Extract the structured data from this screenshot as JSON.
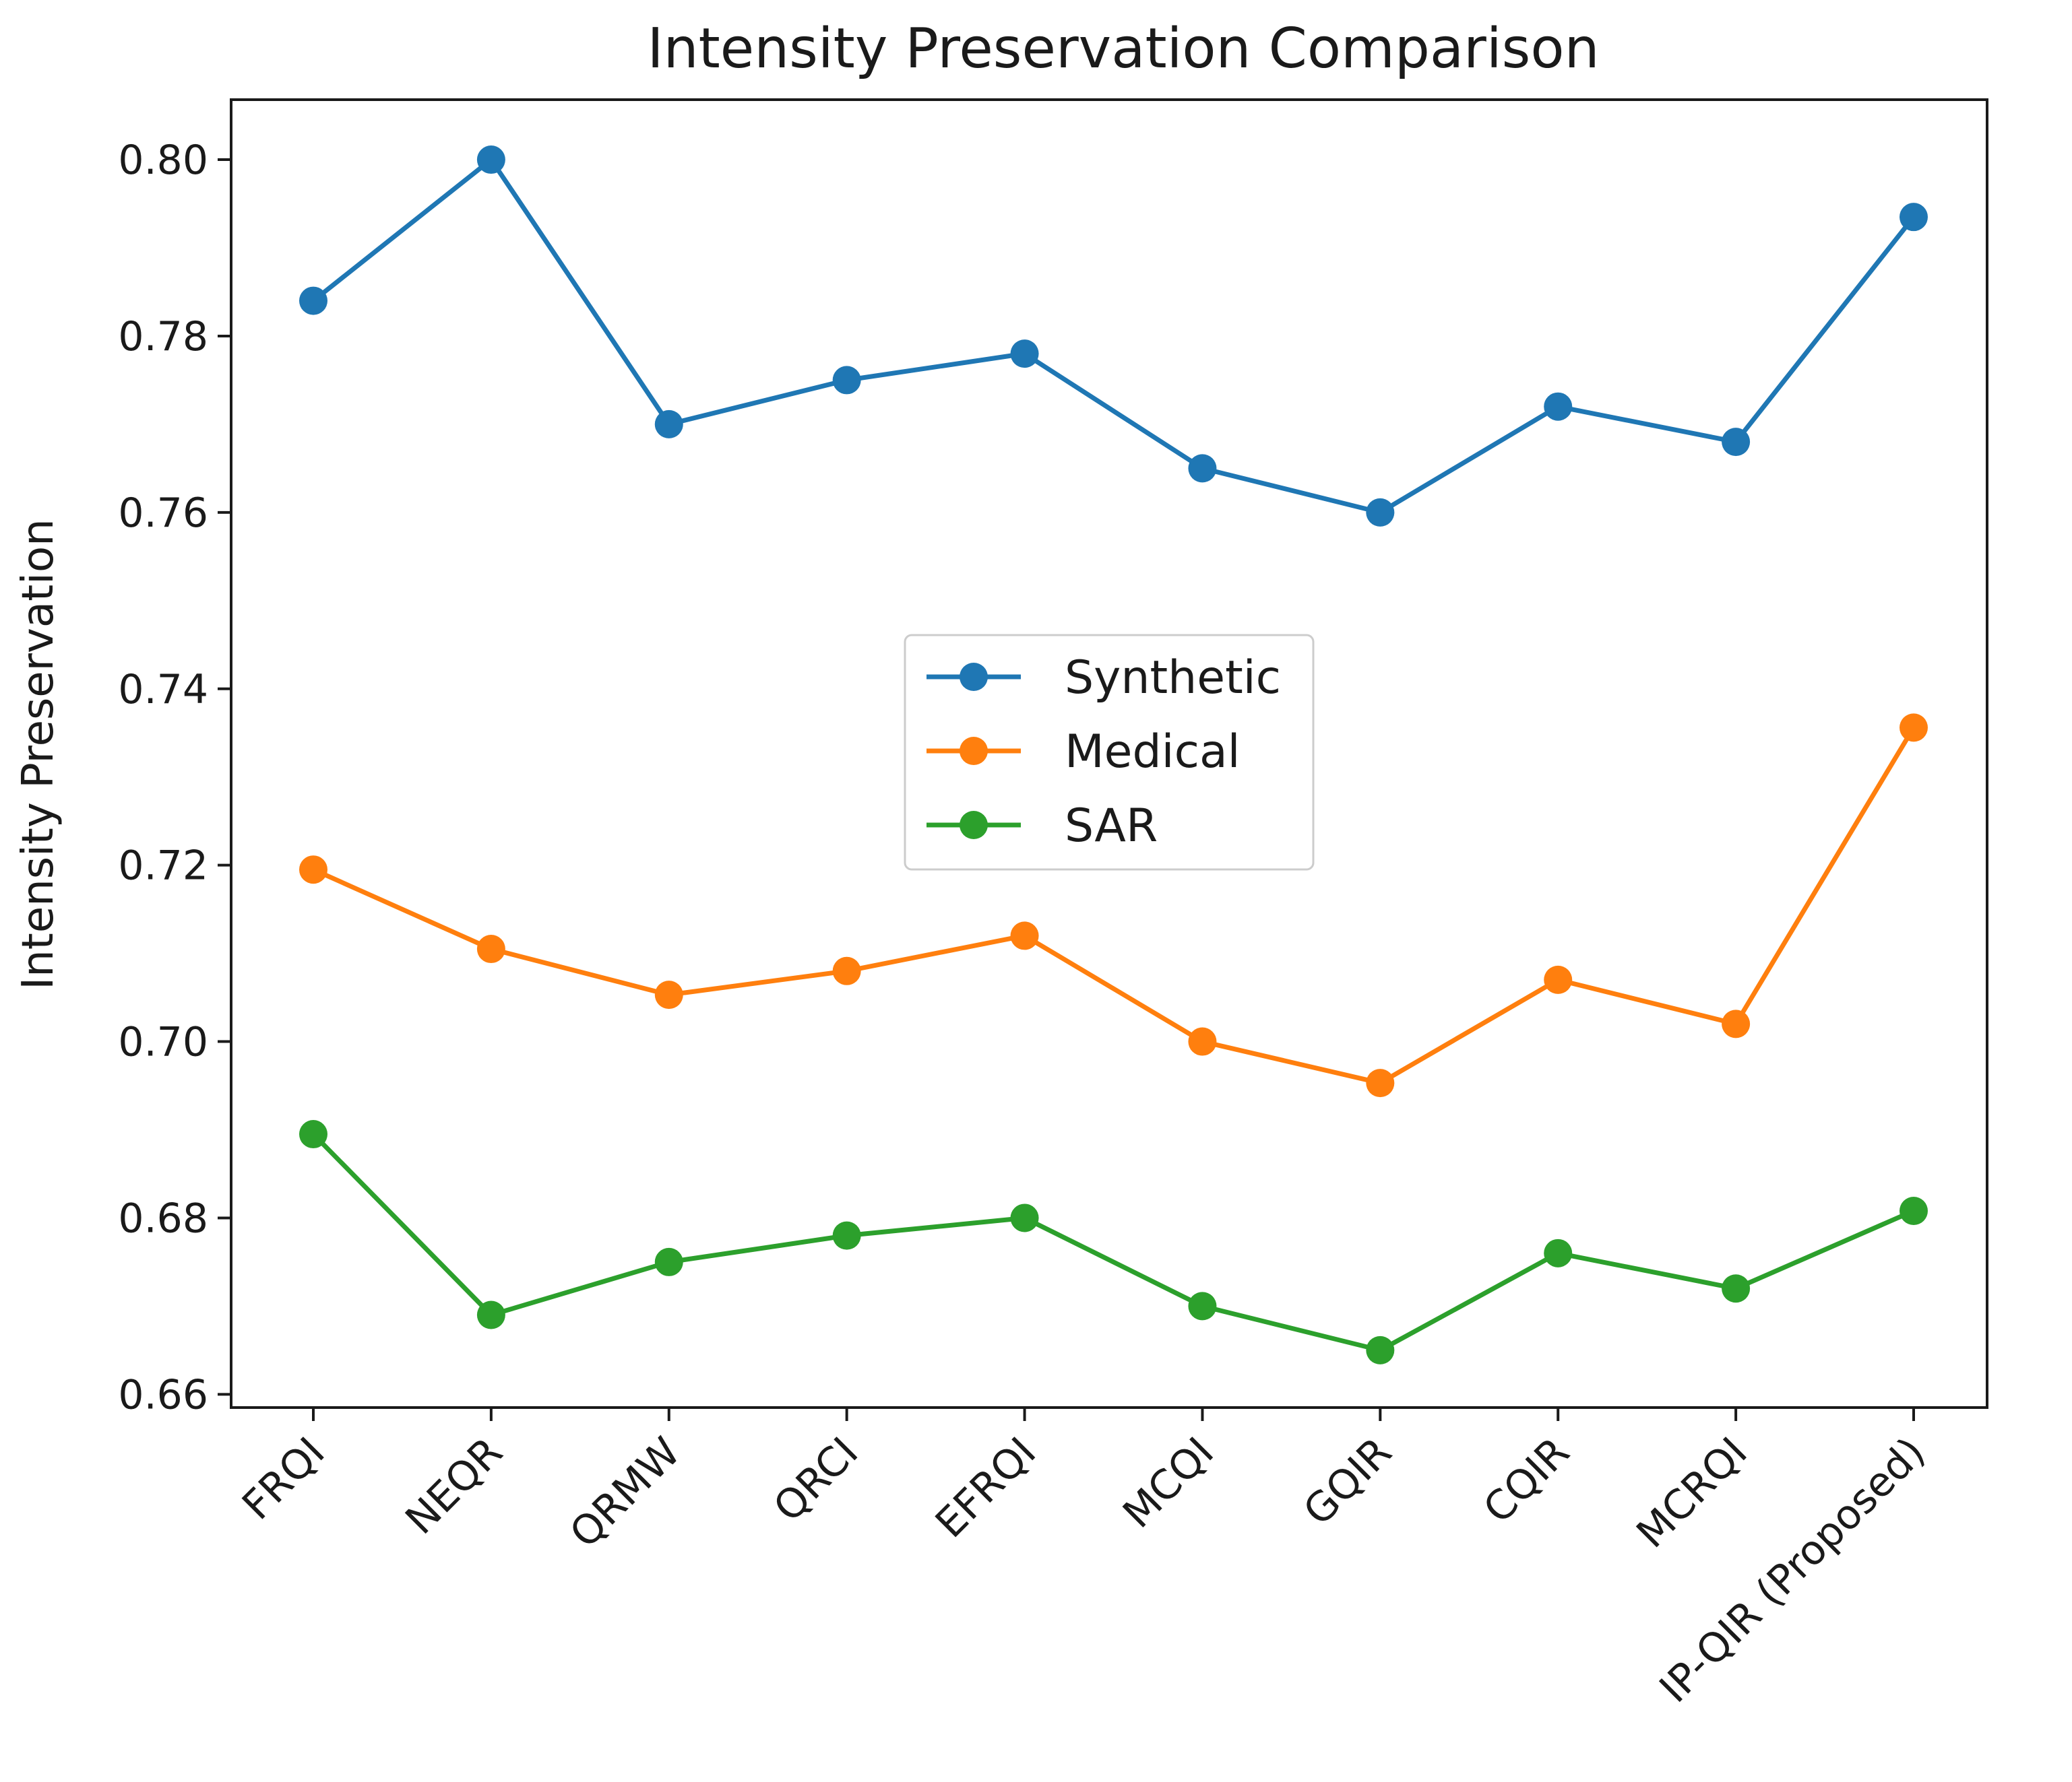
{
  "chart_data": {
    "type": "line",
    "title": "Intensity Preservation Comparison",
    "xlabel": "",
    "ylabel": "Intensity Preservation",
    "categories": [
      "FRQI",
      "NEQR",
      "QRMW",
      "QRCI",
      "EFRQI",
      "MCQI",
      "GQIR",
      "CQIR",
      "MCRQI",
      "IP-QIR (Proposed)"
    ],
    "series": [
      {
        "name": "Synthetic",
        "color": "#1f77b4",
        "values": [
          0.784,
          0.8,
          0.77,
          0.775,
          0.778,
          0.765,
          0.76,
          0.772,
          0.768,
          0.7935
        ]
      },
      {
        "name": "Medical",
        "color": "#ff7f0e",
        "values": [
          0.7195,
          0.7105,
          0.7053,
          0.708,
          0.712,
          0.7,
          0.6953,
          0.707,
          0.702,
          0.7356
        ]
      },
      {
        "name": "SAR",
        "color": "#2ca02c",
        "values": [
          0.6895,
          0.669,
          0.675,
          0.678,
          0.68,
          0.67,
          0.665,
          0.676,
          0.672,
          0.6808
        ]
      }
    ],
    "ylim": [
      0.6585,
      0.8068
    ],
    "yticks": [
      0.66,
      0.68,
      0.7,
      0.72,
      0.74,
      0.76,
      0.78,
      0.8
    ],
    "ytick_labels": [
      "0.66",
      "0.68",
      "0.70",
      "0.72",
      "0.74",
      "0.76",
      "0.78",
      "0.80"
    ],
    "grid": false,
    "legend_position": "center-right",
    "marker": "circle",
    "xtick_rotation_deg": -45
  }
}
